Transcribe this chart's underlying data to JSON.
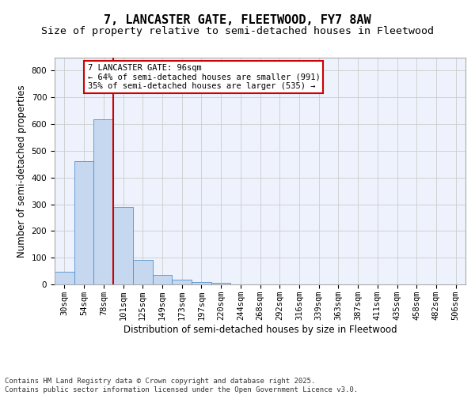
{
  "title1": "7, LANCASTER GATE, FLEETWOOD, FY7 8AW",
  "title2": "Size of property relative to semi-detached houses in Fleetwood",
  "xlabel": "Distribution of semi-detached houses by size in Fleetwood",
  "ylabel": "Number of semi-detached properties",
  "categories": [
    "30sqm",
    "54sqm",
    "78sqm",
    "101sqm",
    "125sqm",
    "149sqm",
    "173sqm",
    "197sqm",
    "220sqm",
    "244sqm",
    "268sqm",
    "292sqm",
    "316sqm",
    "339sqm",
    "363sqm",
    "387sqm",
    "411sqm",
    "435sqm",
    "458sqm",
    "482sqm",
    "506sqm"
  ],
  "values": [
    46,
    461,
    617,
    289,
    93,
    35,
    17,
    10,
    5,
    0,
    0,
    0,
    0,
    0,
    0,
    0,
    0,
    0,
    0,
    0,
    0
  ],
  "bar_color": "#c5d8f0",
  "bar_edge_color": "#5590cc",
  "vline_color": "#cc0000",
  "annotation_text": "7 LANCASTER GATE: 96sqm\n← 64% of semi-detached houses are smaller (991)\n35% of semi-detached houses are larger (535) →",
  "annotation_box_facecolor": "#ffffff",
  "annotation_box_edgecolor": "#cc0000",
  "ylim": [
    0,
    850
  ],
  "yticks": [
    0,
    100,
    200,
    300,
    400,
    500,
    600,
    700,
    800
  ],
  "grid_color": "#cccccc",
  "background_color": "#eef2fc",
  "footnote": "Contains HM Land Registry data © Crown copyright and database right 2025.\nContains public sector information licensed under the Open Government Licence v3.0.",
  "title1_fontsize": 11,
  "title2_fontsize": 9.5,
  "label_fontsize": 8.5,
  "tick_fontsize": 7.5,
  "annot_fontsize": 7.5,
  "footnote_fontsize": 6.5
}
